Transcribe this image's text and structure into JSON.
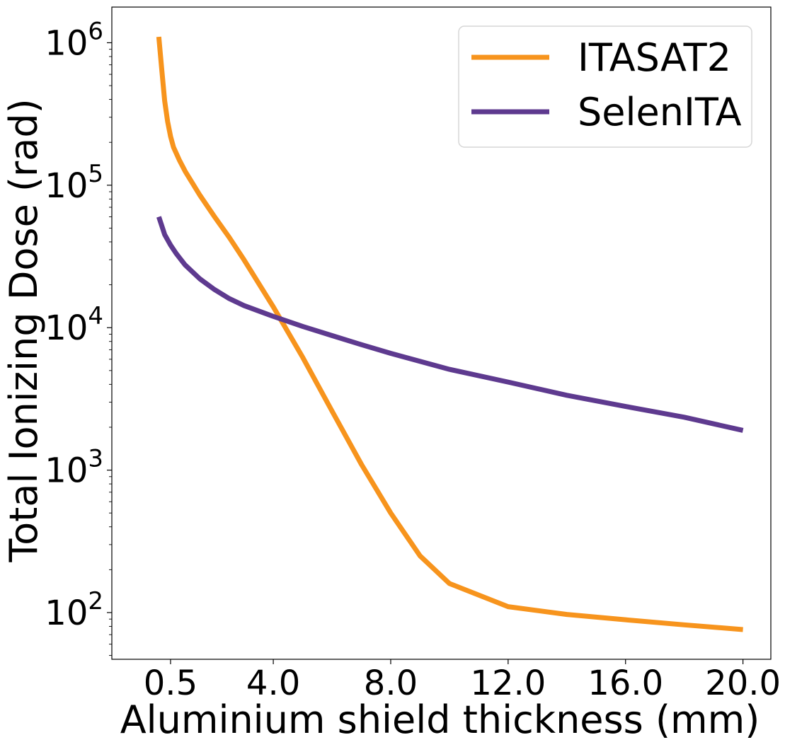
{
  "chart_data": {
    "type": "line",
    "xlabel": "Aluminium shield thickness (mm)",
    "ylabel": "Total Ionizing Dose (rad)",
    "yscale": "log",
    "xlim": [
      -1.5,
      20.95
    ],
    "ylim": [
      47,
      1780000
    ],
    "x_ticks": [
      {
        "value": 0.5,
        "label": "0.5"
      },
      {
        "value": 4.0,
        "label": "4.0"
      },
      {
        "value": 8.0,
        "label": "8.0"
      },
      {
        "value": 12.0,
        "label": "12.0"
      },
      {
        "value": 16.0,
        "label": "16.0"
      },
      {
        "value": 20.0,
        "label": "20.0"
      }
    ],
    "y_ticks": [
      {
        "value": 100,
        "base": "10",
        "exp": "2"
      },
      {
        "value": 1000,
        "base": "10",
        "exp": "3"
      },
      {
        "value": 10000,
        "base": "10",
        "exp": "4"
      },
      {
        "value": 100000,
        "base": "10",
        "exp": "5"
      },
      {
        "value": 1000000,
        "base": "10",
        "exp": "6"
      }
    ],
    "legend": {
      "position": "top-right"
    },
    "series": [
      {
        "name": "ITASAT2",
        "color": "#f7941d",
        "x": [
          0.1,
          0.2,
          0.3,
          0.4,
          0.5,
          0.6,
          0.8,
          1.0,
          1.5,
          2.0,
          2.5,
          3.0,
          4.0,
          5.0,
          6.0,
          7.0,
          8.0,
          9.0,
          10.0,
          12.0,
          14.0,
          16.0,
          18.0,
          20.0
        ],
        "y": [
          1100000,
          650000,
          390000,
          280000,
          220000,
          185000,
          150000,
          125000,
          85000,
          60000,
          43000,
          30000,
          14000,
          6200,
          2600,
          1100,
          500,
          250,
          160,
          110,
          97,
          89,
          82,
          76
        ]
      },
      {
        "name": "SelenITA",
        "color": "#5e3a8f",
        "x": [
          0.1,
          0.2,
          0.3,
          0.5,
          0.7,
          1.0,
          1.5,
          2.0,
          2.5,
          3.0,
          4.0,
          5.0,
          6.0,
          7.0,
          8.0,
          10.0,
          12.0,
          14.0,
          16.0,
          18.0,
          20.0
        ],
        "y": [
          60000,
          52000,
          45000,
          38000,
          33000,
          27500,
          22000,
          18500,
          16000,
          14300,
          12000,
          10200,
          8800,
          7600,
          6600,
          5100,
          4150,
          3350,
          2800,
          2350,
          1900
        ]
      }
    ]
  }
}
